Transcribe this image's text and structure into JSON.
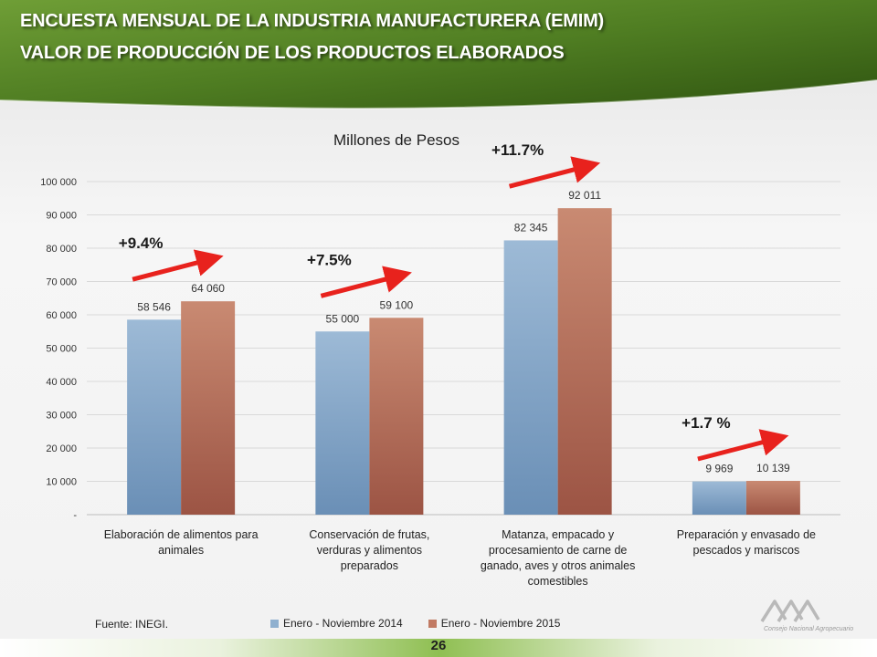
{
  "header": {
    "title_line1": "ENCUESTA MENSUAL DE LA INDUSTRIA MANUFACTURERA (EMIM)",
    "title_line2": "VALOR DE PRODUCCIÓN DE LOS PRODUCTOS ELABORADOS"
  },
  "colors": {
    "series_2014": "#8fb0cf",
    "series_2015": "#c17a63",
    "arrow": "#e8221d",
    "header_green": "#5f8f2c"
  },
  "chart_data": {
    "type": "bar",
    "title": "Millones de Pesos",
    "categories": [
      [
        "Elaboración de alimentos para",
        "animales"
      ],
      [
        "Conservación de frutas,",
        "verduras y alimentos",
        "preparados"
      ],
      [
        "Matanza, empacado y",
        "procesamiento de carne de",
        "ganado, aves y otros animales",
        "comestibles"
      ],
      [
        "Preparación y envasado de",
        "pescados y mariscos"
      ]
    ],
    "series": [
      {
        "name": "Enero - Noviembre 2014",
        "values": [
          58546,
          55000,
          82345,
          9969
        ],
        "labels": [
          "58 546",
          "55 000",
          "82 345",
          "9 969"
        ]
      },
      {
        "name": "Enero - Noviembre 2015",
        "values": [
          64060,
          59100,
          92011,
          10139
        ],
        "labels": [
          "64 060",
          "59 100",
          "92 011",
          "10 139"
        ]
      }
    ],
    "growth_labels": [
      "+9.4%",
      "+7.5%",
      "+11.7%",
      "+1.7 %"
    ],
    "ylim": [
      0,
      100000
    ],
    "yticks": [
      0,
      10000,
      20000,
      30000,
      40000,
      50000,
      60000,
      70000,
      80000,
      90000,
      100000
    ],
    "ytick_labels": [
      "-",
      "10 000",
      "20 000",
      "30 000",
      "40 000",
      "50 000",
      "60 000",
      "70 000",
      "80 000",
      "90 000",
      "100 000"
    ],
    "grid": true,
    "legend_position": "bottom"
  },
  "footer": {
    "source": "Fuente: INEGI.",
    "page_number": "26",
    "logo_text": "Consejo Nacional Agropecuario"
  }
}
